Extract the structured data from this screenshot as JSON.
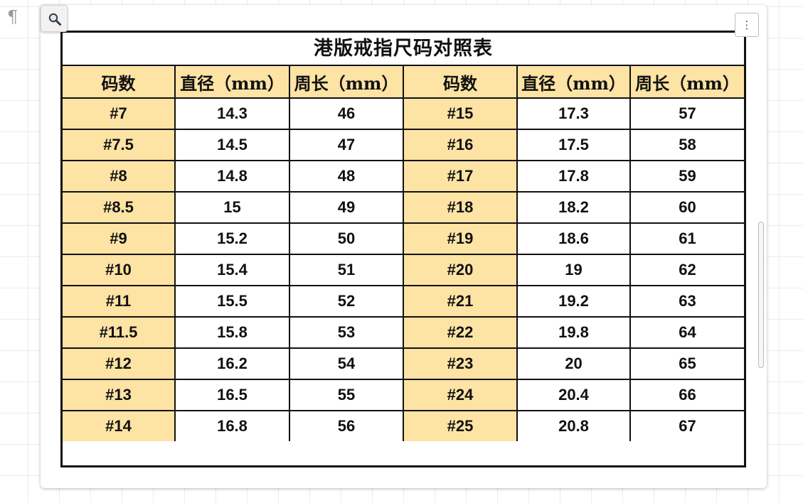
{
  "toolbar": {
    "pilcrow_symbol": "¶",
    "zoom_icon": "magnifier-icon",
    "more_label": "⋮"
  },
  "colors": {
    "header_fill": "#fde3a4",
    "size_column_fill": "#fde3a4",
    "border": "#111111",
    "grid_line": "#ececec"
  },
  "table": {
    "title": "港版戒指尺码对照表",
    "headers": [
      "码数",
      "直径（mm）",
      "周长（mm）",
      "码数",
      "直径（mm）",
      "周长（mm）"
    ],
    "rows": [
      [
        "#7",
        "14.3",
        "46",
        "#15",
        "17.3",
        "57"
      ],
      [
        "#7.5",
        "14.5",
        "47",
        "#16",
        "17.5",
        "58"
      ],
      [
        "#8",
        "14.8",
        "48",
        "#17",
        "17.8",
        "59"
      ],
      [
        "#8.5",
        "15",
        "49",
        "#18",
        "18.2",
        "60"
      ],
      [
        "#9",
        "15.2",
        "50",
        "#19",
        "18.6",
        "61"
      ],
      [
        "#10",
        "15.4",
        "51",
        "#20",
        "19",
        "62"
      ],
      [
        "#11",
        "15.5",
        "52",
        "#21",
        "19.2",
        "63"
      ],
      [
        "#11.5",
        "15.8",
        "53",
        "#22",
        "19.8",
        "64"
      ],
      [
        "#12",
        "16.2",
        "54",
        "#23",
        "20",
        "65"
      ],
      [
        "#13",
        "16.5",
        "55",
        "#24",
        "20.4",
        "66"
      ],
      [
        "#14",
        "16.8",
        "56",
        "#25",
        "20.8",
        "67"
      ]
    ]
  }
}
